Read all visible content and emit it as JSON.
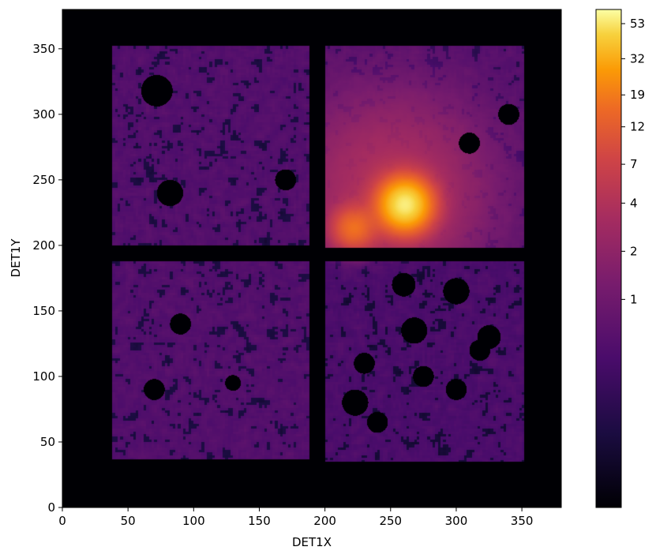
{
  "chart_data": {
    "type": "heatmap",
    "xlabel": "DET1X",
    "ylabel": "DET1Y",
    "xlim": [
      0,
      380
    ],
    "ylim": [
      0,
      380
    ],
    "xticks": [
      0,
      50,
      100,
      150,
      200,
      250,
      300,
      350
    ],
    "yticks": [
      0,
      50,
      100,
      150,
      200,
      250,
      300,
      350
    ],
    "colormap": "inferno",
    "color_scale": "log",
    "colorbar_ticks": [
      1,
      2,
      4,
      7,
      12,
      19,
      32,
      53
    ],
    "colorbar_max": 65,
    "quadrants": [
      {
        "x": [
          38,
          188
        ],
        "y": [
          37,
          352
        ],
        "split_y": [
          188,
          200
        ],
        "level": 0.45
      },
      {
        "x": [
          200,
          352
        ],
        "y": [
          198,
          352
        ],
        "level": 0.45
      },
      {
        "x": [
          200,
          352
        ],
        "y": [
          35,
          188
        ],
        "level": 0.38
      }
    ],
    "sources": [
      {
        "x": 261,
        "y": 231,
        "peak": 53,
        "sigma": 12
      },
      {
        "x": 222,
        "y": 213,
        "peak": 14,
        "sigma": 10
      }
    ],
    "diffuse_glow": {
      "x": 250,
      "y": 240,
      "peak": 3.5,
      "sigma": 45
    },
    "masked_holes": [
      [
        72,
        318,
        12
      ],
      [
        82,
        240,
        10
      ],
      [
        170,
        250,
        8
      ],
      [
        310,
        278,
        8
      ],
      [
        340,
        300,
        8
      ],
      [
        260,
        170,
        9
      ],
      [
        300,
        165,
        10
      ],
      [
        325,
        130,
        9
      ],
      [
        318,
        120,
        8
      ],
      [
        90,
        140,
        8
      ],
      [
        268,
        135,
        10
      ],
      [
        230,
        110,
        8
      ],
      [
        275,
        100,
        8
      ],
      [
        300,
        90,
        8
      ],
      [
        223,
        80,
        10
      ],
      [
        240,
        65,
        8
      ],
      [
        70,
        90,
        8
      ],
      [
        130,
        95,
        6
      ]
    ]
  }
}
